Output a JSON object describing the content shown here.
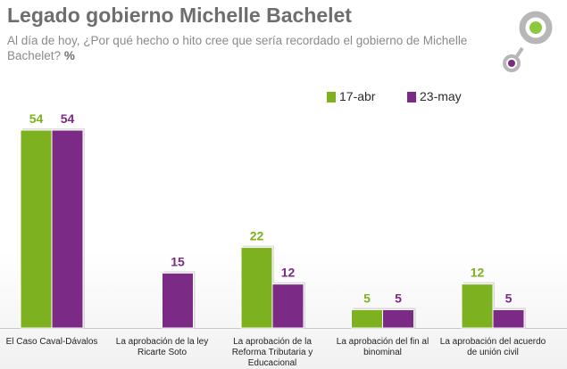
{
  "header": {
    "title": "Legado gobierno Michelle Bachelet",
    "subtitle": "Al día de hoy, ¿Por qué hecho o hito cree que sería recordado el gobierno de Michelle Bachelet?",
    "unit": "%"
  },
  "colors": {
    "green": "#7db11f",
    "purple": "#7b2a86",
    "logo_green": "#8dc63f",
    "logo_purple": "#7b2a86",
    "logo_gray": "#b7b7b7"
  },
  "chart_data": {
    "type": "bar",
    "title": "Legado gobierno Michelle Bachelet",
    "categories": [
      [
        "El Caso Caval-Dávalos"
      ],
      [
        "La aprobación de la ley",
        "Ricarte Soto"
      ],
      [
        "La aprobación de la",
        "Reforma Tributaria y",
        "Educacional"
      ],
      [
        "La aprobación del fin al",
        "binominal"
      ],
      [
        "La aprobación del acuerdo",
        "de unión civil"
      ]
    ],
    "series": [
      {
        "name": "17-abr",
        "color": "#7db11f",
        "values": [
          54,
          null,
          22,
          5,
          12
        ]
      },
      {
        "name": "23-may",
        "color": "#7b2a86",
        "values": [
          54,
          15,
          12,
          5,
          5
        ]
      }
    ],
    "ylim": [
      0,
      54
    ],
    "grid": false,
    "legend_position": "top-right",
    "data_labels": true
  }
}
